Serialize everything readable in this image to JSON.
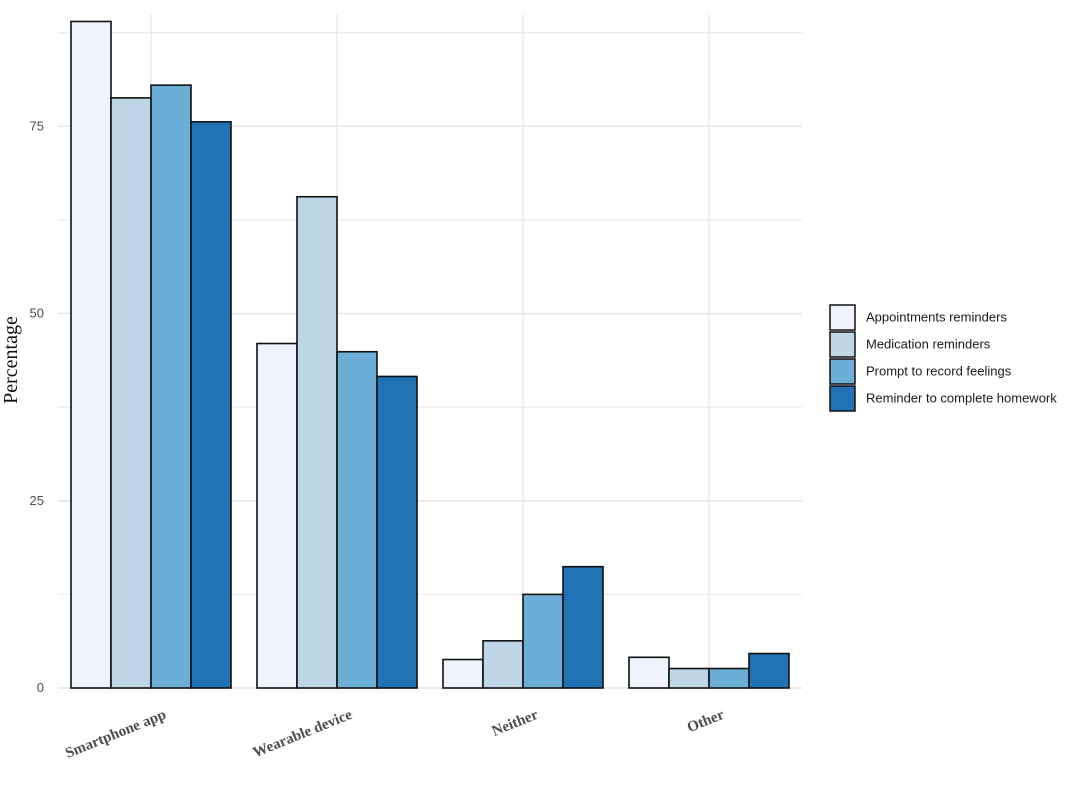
{
  "chart_data": {
    "type": "bar",
    "title": "",
    "xlabel": "",
    "ylabel": "Percentage",
    "categories": [
      "Smartphone app",
      "Wearable device",
      "Neither",
      "Other"
    ],
    "series": [
      {
        "name": "Appointments reminders",
        "color": "#EEF3FD",
        "values": [
          89,
          46,
          3.8,
          4.1
        ]
      },
      {
        "name": "Medication reminders",
        "color": "#BDD7E7",
        "values": [
          78.8,
          65.6,
          6.3,
          2.6
        ]
      },
      {
        "name": "Prompt to record feelings",
        "color": "#6BAED6",
        "values": [
          80.5,
          44.9,
          12.5,
          2.6
        ]
      },
      {
        "name": "Reminder to complete homework",
        "color": "#2171B5",
        "values": [
          75.6,
          41.6,
          16.2,
          4.6
        ]
      }
    ],
    "ylim": [
      0,
      90
    ],
    "yticks": [
      0,
      25,
      50,
      75
    ],
    "ytick_labels": [
      "0",
      "25",
      "50",
      "75"
    ],
    "grid": true,
    "legend_position": "right",
    "style": {
      "bar_outline": "#111111",
      "grid_color": "#E6E6E6",
      "tick_label_color": "#4D4D4D",
      "axis_label_color": "#111111"
    }
  }
}
